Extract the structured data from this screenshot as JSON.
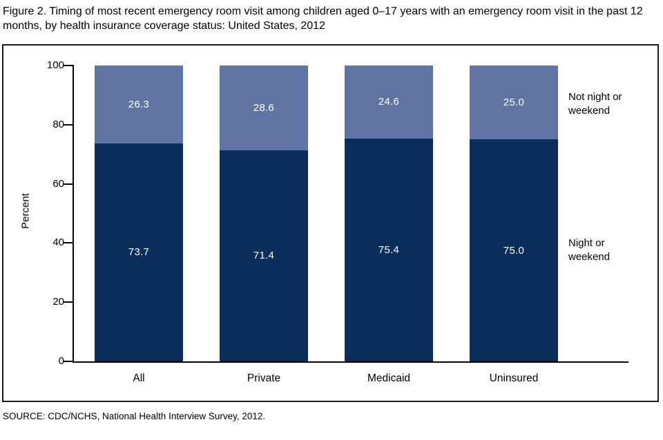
{
  "figure": {
    "title": "Figure 2. Timing of most recent emergency room visit among children aged 0–17 years with an emergency room visit in the past 12 months, by health insurance coverage status: United States, 2012",
    "source": "SOURCE: CDC/NCHS, National Health Interview Survey, 2012."
  },
  "chart_data": {
    "type": "bar",
    "subtype": "stacked-percent",
    "title": "Timing of most recent emergency room visit among children aged 0–17 years, by health insurance coverage status: United States, 2012",
    "categories": [
      "All",
      "Private",
      "Medicaid",
      "Uninsured"
    ],
    "series": [
      {
        "name": "Night or weekend",
        "values": [
          73.7,
          71.4,
          75.4,
          75.0
        ],
        "color": "#0b2d5c"
      },
      {
        "name": "Not night or weekend",
        "values": [
          26.3,
          28.6,
          24.6,
          25.0
        ],
        "color": "#5f74a2"
      }
    ],
    "xlabel": "",
    "ylabel": "Percent",
    "ylim": [
      0,
      100
    ],
    "yticks": [
      0,
      20,
      40,
      60,
      80,
      100
    ],
    "grid": false,
    "legend_position": "right-of-bars",
    "value_label_color": "#ffffff",
    "value_format_decimals": 1,
    "axis_color": "#000000"
  }
}
